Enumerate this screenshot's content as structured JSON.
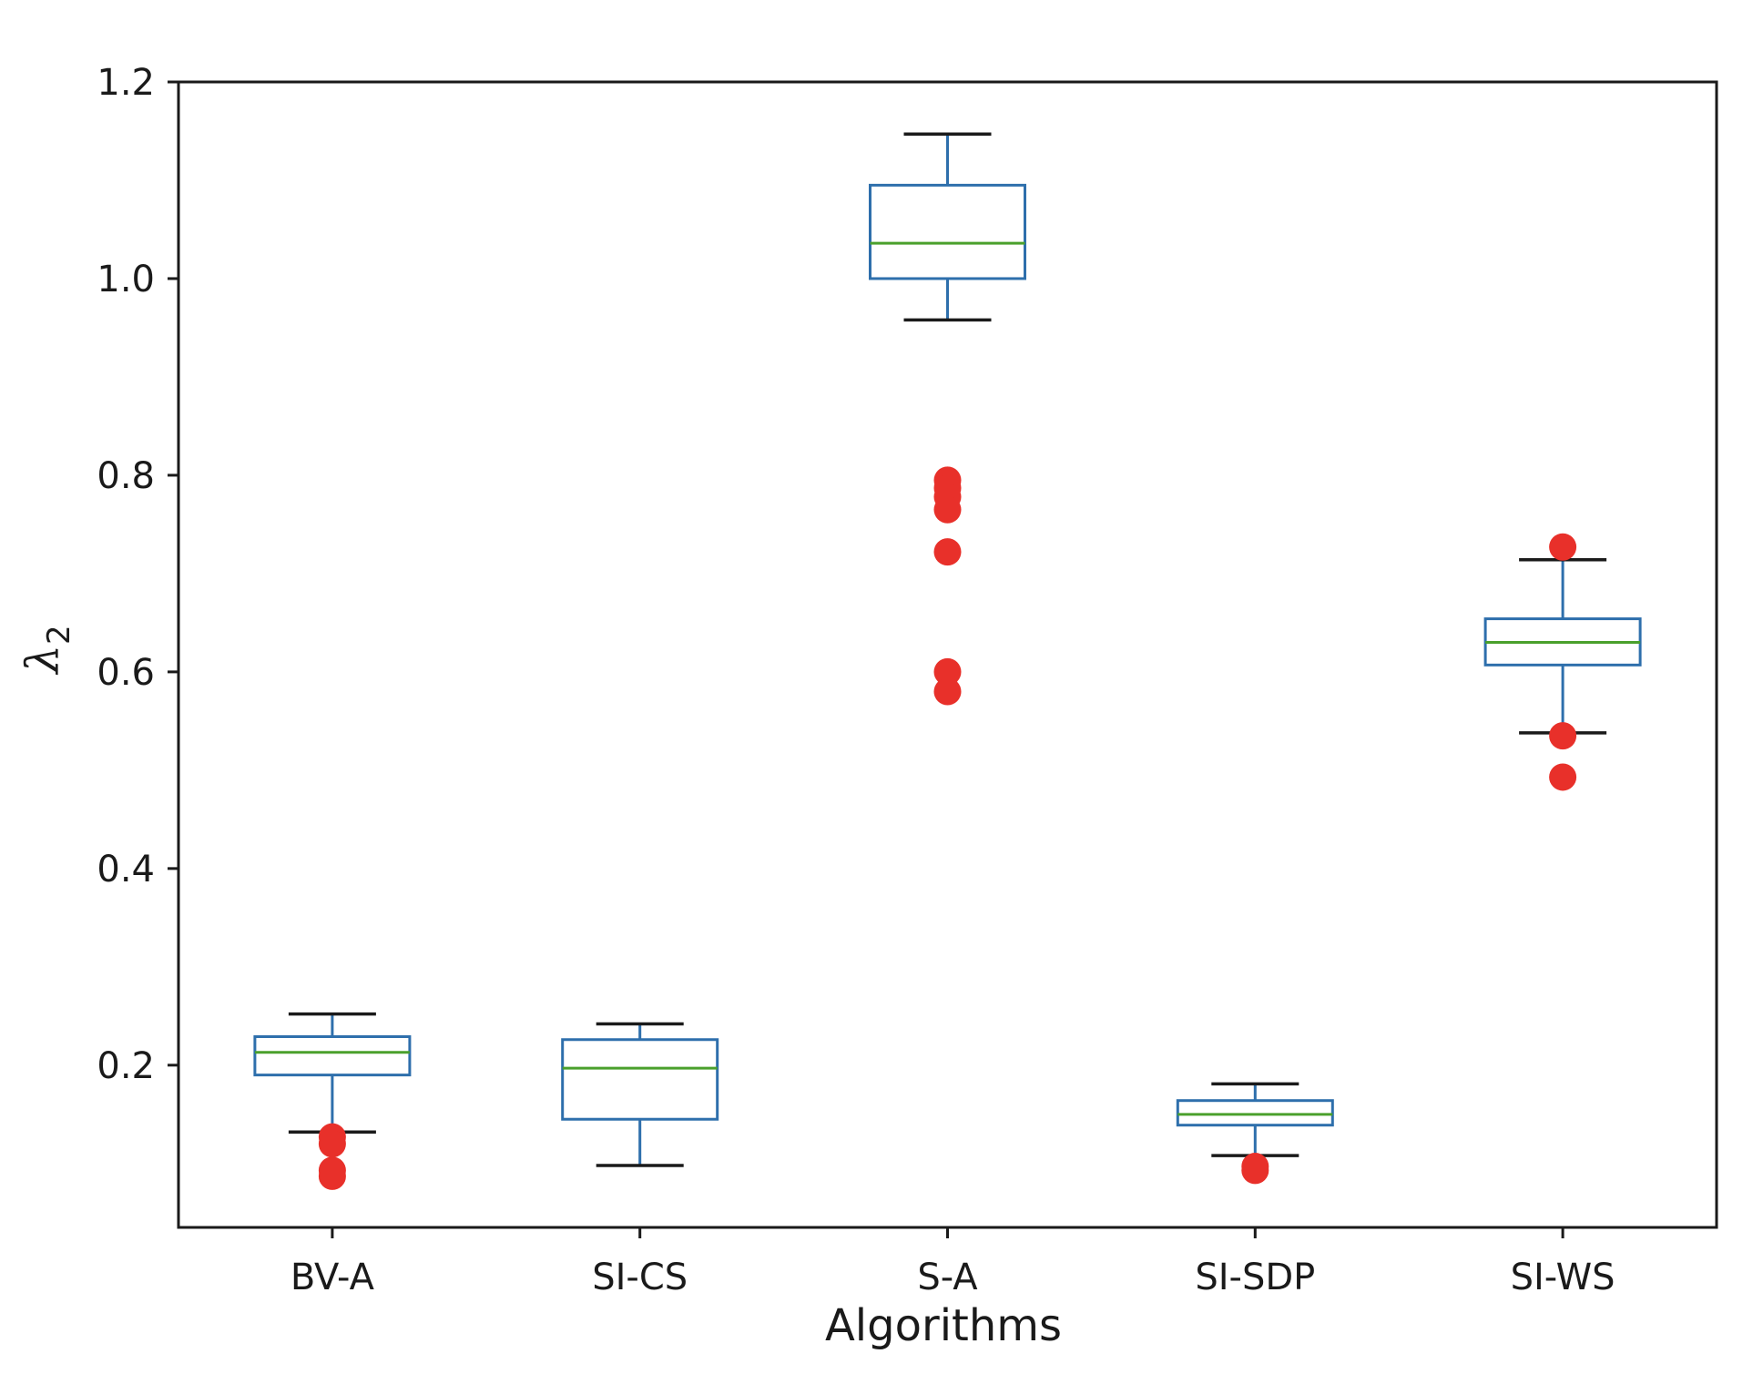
{
  "chart_data": {
    "type": "box",
    "title": "",
    "xlabel": "Algorithms",
    "ylabel": {
      "symbol": "λ",
      "subscript": "2"
    },
    "ylim": [
      0.035,
      1.2
    ],
    "yticks": [
      0.2,
      0.4,
      0.6,
      0.8,
      1.0,
      1.2
    ],
    "ytick_labels": [
      "0.2",
      "0.4",
      "0.6",
      "0.8",
      "1.0",
      "1.2"
    ],
    "grid": false,
    "colors": {
      "box": "#2e6fac",
      "median": "#4aa02c",
      "cap": "#1a1a1a",
      "outlier": "#e8302a",
      "axis": "#1a1a1a"
    },
    "categories": [
      "BV-A",
      "SI-CS",
      "S-A",
      "SI-SDP",
      "SI-WS"
    ],
    "boxes": [
      {
        "label": "BV-A",
        "whisker_low": 0.132,
        "q1": 0.19,
        "median": 0.213,
        "q3": 0.229,
        "whisker_high": 0.252,
        "outliers": [
          0.127,
          0.12,
          0.093,
          0.087
        ]
      },
      {
        "label": "SI-CS",
        "whisker_low": 0.098,
        "q1": 0.145,
        "median": 0.197,
        "q3": 0.226,
        "whisker_high": 0.242,
        "outliers": []
      },
      {
        "label": "S-A",
        "whisker_low": 0.958,
        "q1": 1.0,
        "median": 1.036,
        "q3": 1.095,
        "whisker_high": 1.147,
        "outliers": [
          0.795,
          0.787,
          0.778,
          0.765,
          0.722,
          0.6,
          0.58
        ]
      },
      {
        "label": "SI-SDP",
        "whisker_low": 0.108,
        "q1": 0.139,
        "median": 0.15,
        "q3": 0.164,
        "whisker_high": 0.181,
        "outliers": [
          0.097,
          0.093
        ]
      },
      {
        "label": "SI-WS",
        "whisker_low": 0.538,
        "q1": 0.607,
        "median": 0.63,
        "q3": 0.654,
        "whisker_high": 0.714,
        "outliers": [
          0.727,
          0.535,
          0.493
        ]
      }
    ]
  }
}
